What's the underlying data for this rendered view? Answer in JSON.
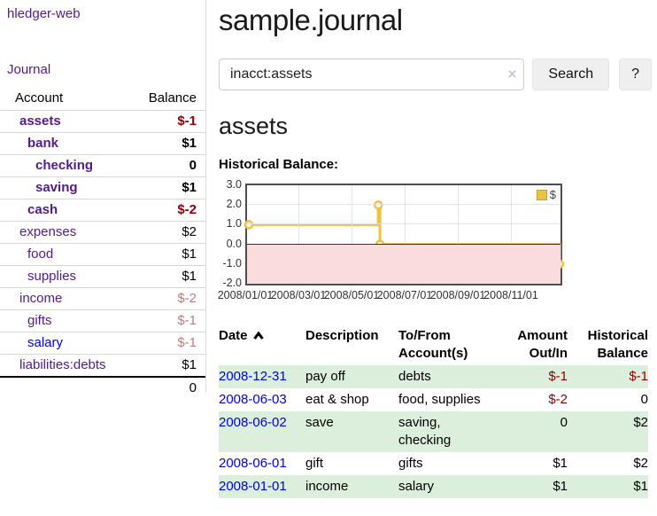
{
  "sidebar": {
    "app_title": "hledger-web",
    "nav": {
      "journal": "Journal"
    },
    "accounts_table": {
      "account_header": "Account",
      "balance_header": "Balance",
      "rows": [
        {
          "name": "assets",
          "depth": 0,
          "bold": true,
          "link": "purple",
          "balance": "$-1",
          "balance_class": "neg-strong"
        },
        {
          "name": "bank",
          "depth": 1,
          "bold": true,
          "link": "purple",
          "balance": "$1",
          "balance_class": "pos"
        },
        {
          "name": "checking",
          "depth": 2,
          "bold": true,
          "link": "purple",
          "balance": "0",
          "balance_class": "pos"
        },
        {
          "name": "saving",
          "depth": 2,
          "bold": true,
          "link": "purple",
          "balance": "$1",
          "balance_class": "pos"
        },
        {
          "name": "cash",
          "depth": 1,
          "bold": true,
          "link": "purple",
          "balance": "$-2",
          "balance_class": "neg-strong"
        },
        {
          "name": "expenses",
          "depth": 0,
          "bold": false,
          "link": "purple",
          "balance": "$2",
          "balance_class": "pos"
        },
        {
          "name": "food",
          "depth": 1,
          "bold": false,
          "link": "purple",
          "balance": "$1",
          "balance_class": "pos"
        },
        {
          "name": "supplies",
          "depth": 1,
          "bold": false,
          "link": "purple",
          "balance": "$1",
          "balance_class": "pos"
        },
        {
          "name": "income",
          "depth": 0,
          "bold": false,
          "link": "purple",
          "balance": "$-2",
          "balance_class": "neg-muted"
        },
        {
          "name": "gifts",
          "depth": 1,
          "bold": false,
          "link": "purple",
          "balance": "$-1",
          "balance_class": "neg-muted"
        },
        {
          "name": "salary",
          "depth": 1,
          "bold": false,
          "link": "blue",
          "balance": "$-1",
          "balance_class": "neg-muted"
        },
        {
          "name": "liabilities:debts",
          "depth": 0,
          "bold": false,
          "link": "purple",
          "balance": "$1",
          "balance_class": "pos"
        }
      ],
      "total": "0"
    }
  },
  "main": {
    "title": "sample.journal",
    "search": {
      "value": "inacct:assets",
      "clear_label": "×",
      "search_button": "Search",
      "help_button": "?"
    },
    "account_heading": "assets",
    "section_heading": "Historical Balance:"
  },
  "chart_data": {
    "type": "line",
    "step": true,
    "title": "Historical Balance:",
    "series": [
      {
        "name": "$",
        "color": "#edc240",
        "points": [
          {
            "date": "2008-01-01",
            "value": 1
          },
          {
            "date": "2008-06-01",
            "value": 2
          },
          {
            "date": "2008-06-03",
            "value": 0
          },
          {
            "date": "2008-12-31",
            "value": -1
          }
        ]
      }
    ],
    "x_ticks": [
      "2008/01/01",
      "2008/03/01",
      "2008/05/01",
      "2008/07/01",
      "2008/09/01",
      "2008/11/01"
    ],
    "y_ticks": [
      "3.0",
      "2.0",
      "1.0",
      "0.0",
      "-1.0",
      "-2.0"
    ],
    "ylim": [
      -2,
      3
    ],
    "x_range": [
      "2008-01-01",
      "2009-01-01"
    ],
    "grid": true,
    "legend": {
      "label": "$",
      "position": "top-right"
    }
  },
  "register_table": {
    "headers": {
      "date": "Date",
      "description": "Description",
      "accounts": "To/From Account(s)",
      "amount": "Amount Out/In",
      "balance": "Historical Balance"
    },
    "sort_icon": "chevron-up",
    "rows": [
      {
        "date": "2008-12-31",
        "description": "pay off",
        "accounts": "debts",
        "amount": "$-1",
        "amount_class": "neg-strong",
        "balance": "$-1",
        "balance_class": "neg-strong"
      },
      {
        "date": "2008-06-03",
        "description": "eat & shop",
        "accounts": "food, supplies",
        "amount": "$-2",
        "amount_class": "neg-strong",
        "balance": "0",
        "balance_class": "pos"
      },
      {
        "date": "2008-06-02",
        "description": "save",
        "accounts": "saving, checking",
        "amount": "0",
        "amount_class": "pos",
        "balance": "$2",
        "balance_class": "pos"
      },
      {
        "date": "2008-06-01",
        "description": "gift",
        "accounts": "gifts",
        "amount": "$1",
        "amount_class": "pos",
        "balance": "$2",
        "balance_class": "pos"
      },
      {
        "date": "2008-01-01",
        "description": "income",
        "accounts": "salary",
        "amount": "$1",
        "amount_class": "pos",
        "balance": "$1",
        "balance_class": "pos"
      }
    ]
  },
  "colors": {
    "link_purple": "#551a8b",
    "link_blue": "#0000e6",
    "negative_strong": "#8e0000",
    "negative_muted": "#b87e7e",
    "row_stripe_green": "#dcefdc",
    "chart_line": "#edc240",
    "chart_negative_fill": "#fbdcdc",
    "chart_zero_line": "#a40000",
    "plot_border": "#4d4d4d"
  }
}
